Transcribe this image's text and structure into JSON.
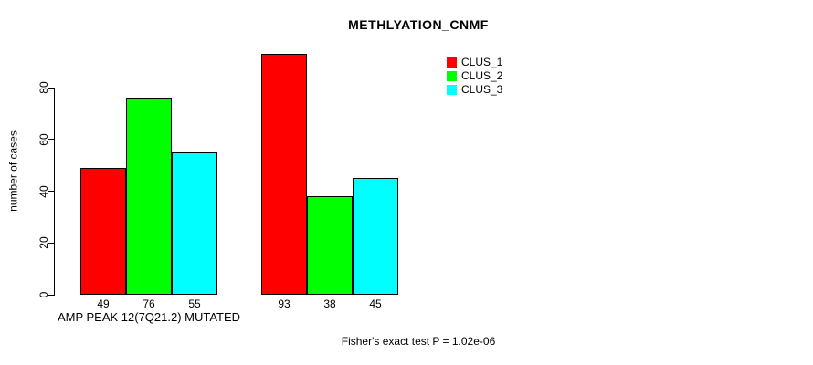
{
  "title": "METHLYATION_CNMF",
  "footer": "Fisher's exact test P = 1.02e-06",
  "legend": {
    "position": "top-right",
    "items": [
      {
        "label": "CLUS_1",
        "color": "#FF0000"
      },
      {
        "label": "CLUS_2",
        "color": "#00FF00"
      },
      {
        "label": "CLUS_3",
        "color": "#00FFFF"
      }
    ]
  },
  "chart_data": {
    "type": "bar",
    "title": "METHLYATION_CNMF",
    "xlabel": "",
    "ylabel": "number of cases",
    "yticks": [
      0,
      20,
      40,
      60,
      80
    ],
    "ylim": [
      0,
      95
    ],
    "grid": false,
    "legend_position": "top-right",
    "bar_value_labels": true,
    "categories": [
      "AMP PEAK 12(7Q21.2) MUTATED",
      ""
    ],
    "series": [
      {
        "name": "CLUS_1",
        "color": "#FF0000",
        "values": [
          49,
          93
        ]
      },
      {
        "name": "CLUS_2",
        "color": "#00FF00",
        "values": [
          76,
          38
        ]
      },
      {
        "name": "CLUS_3",
        "color": "#00FFFF",
        "values": [
          55,
          45
        ]
      }
    ],
    "annotation": "Fisher's exact test P = 1.02e-06"
  }
}
